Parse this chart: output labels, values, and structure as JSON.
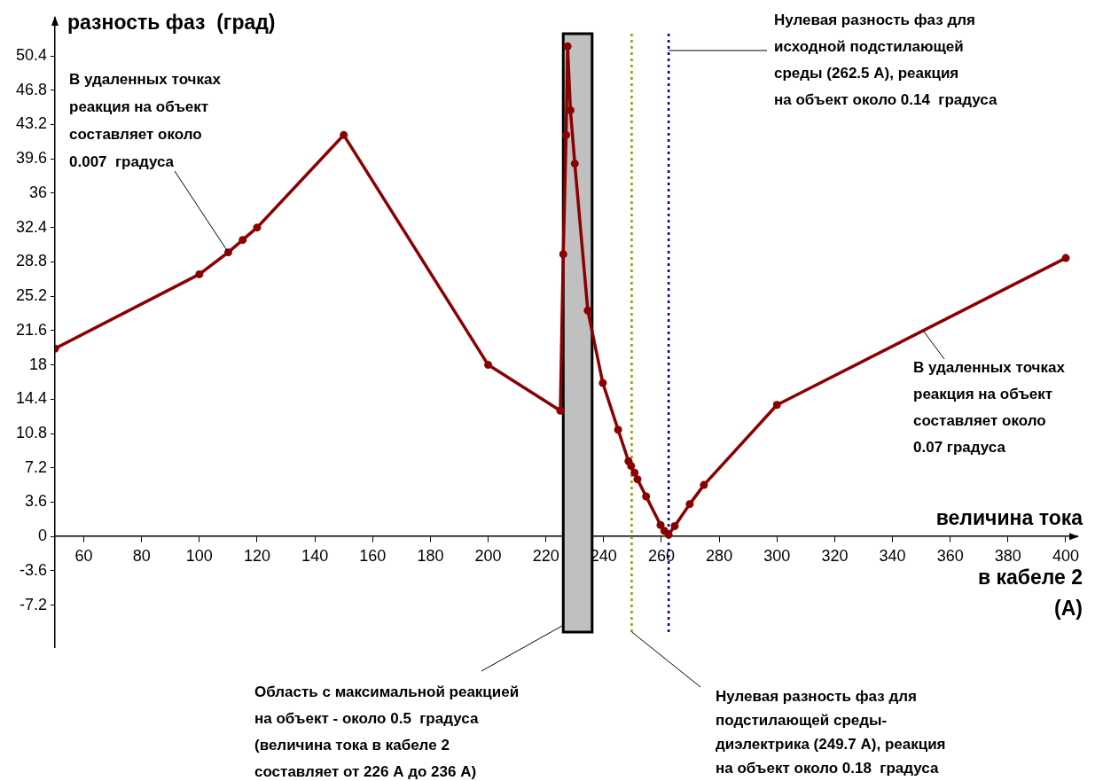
{
  "chart_data": {
    "type": "line",
    "ylabel": "разность фаз  (град)",
    "xlabel": "величина тока\nв кабеле 2\n(А)",
    "x": [
      50,
      100,
      110,
      115,
      120,
      150,
      200,
      225,
      226,
      227,
      227.5,
      228.5,
      230,
      234.5,
      239.7,
      245,
      248.6,
      249.5,
      250.7,
      251.7,
      254.7,
      259.7,
      261,
      262.5,
      264.6,
      269.8,
      274.7,
      300,
      400
    ],
    "series": [
      {
        "color": "#8b0000",
        "values": [
          19.7,
          27.5,
          29.8,
          31.1,
          32.4,
          42.1,
          18.0,
          13.2,
          29.6,
          42.1,
          51.4,
          44.7,
          39.1,
          23.7,
          16.1,
          11.2,
          7.9,
          7.4,
          6.7,
          6.0,
          4.2,
          1.2,
          0.6,
          0.2,
          1.1,
          3.4,
          5.4,
          13.8,
          29.2
        ]
      }
    ],
    "xlim": [
      50,
      404
    ],
    "xticks": [
      60,
      80,
      100,
      120,
      140,
      160,
      180,
      200,
      220,
      240,
      260,
      280,
      300,
      320,
      340,
      360,
      380,
      400
    ],
    "ylim": [
      -11.6,
      54.4
    ],
    "yticks": [
      -7.2,
      -3.6,
      0,
      3.6,
      7.2,
      10.8,
      14.4,
      18,
      21.6,
      25.2,
      28.8,
      32.4,
      36,
      39.6,
      43.2,
      46.8,
      50.4
    ],
    "grid": false,
    "legend": false,
    "marker": "circle",
    "line_style": "solid",
    "bands": [
      {
        "axis": "x",
        "from": 226,
        "to": 236,
        "color": "#c0c0c0"
      }
    ],
    "ref_lines": [
      {
        "axis": "x",
        "value": 249.7,
        "color": "#999900",
        "line_style": "dotted"
      },
      {
        "axis": "x",
        "value": 262.5,
        "color": "#000099",
        "line_style": "dotted"
      }
    ],
    "annotations": [
      {
        "text": "В удаленных точках\nреакция на объект\nсоставляет около\n0.007  градуса",
        "x": 110,
        "y": 29.8
      },
      {
        "text": "Нулевая разность фаз для\nисходной подстилающей\nсреды (262.5 А), реакция\nна объект около 0.14  градуса",
        "x": 262.5,
        "y": 51
      },
      {
        "text": "В удаленных точках\nреакция на объект\nсоставляет около\n0.07 градуса",
        "x": 350.6,
        "y": 21.6
      },
      {
        "text": "Область с максимальной реакцией\nна объект - около 0.5  градуса\n(величина тока в кабеле 2\nсоставляет от 226 А до 236 А)",
        "x": 226,
        "y": -9.3
      },
      {
        "text": "Нулевая разность фаз для\nподстилающей среды-\nдиэлектрика (249.7 А), реакция\nна объект около 0.18  градуса",
        "x": 249.7,
        "y": -10
      }
    ]
  }
}
